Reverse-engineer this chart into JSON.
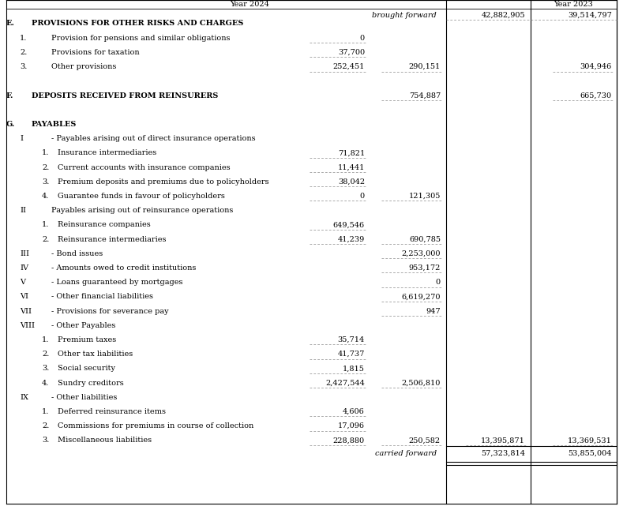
{
  "brought_forward_label": "brought forward",
  "brought_forward_2024": "42,882,905",
  "brought_forward_2023": "39,514,797",
  "carried_forward_label": "carried forward",
  "carried_forward_2024": "57,323,814",
  "carried_forward_2023": "53,855,004",
  "last_row_2024_total": "13,395,871",
  "bg_color": "#ffffff",
  "text_color": "#000000",
  "rows": [
    {
      "label": "E.",
      "label2": "PROVISIONS FOR OTHER RISKS AND CHARGES",
      "indent": 0,
      "bold": true,
      "c1": "",
      "c2": "",
      "c3": "",
      "c4": "",
      "ul1": false,
      "ul2": false,
      "ul3": false,
      "ul4": false
    },
    {
      "label": "1.",
      "label2": "Provision for pensions and similar obligations",
      "indent": 1,
      "bold": false,
      "c1": "0",
      "c2": "",
      "c3": "",
      "c4": "",
      "ul1": true,
      "ul2": false,
      "ul3": false,
      "ul4": false
    },
    {
      "label": "2.",
      "label2": "Provisions for taxation",
      "indent": 1,
      "bold": false,
      "c1": "37,700",
      "c2": "",
      "c3": "",
      "c4": "",
      "ul1": true,
      "ul2": false,
      "ul3": false,
      "ul4": false
    },
    {
      "label": "3.",
      "label2": "Other provisions",
      "indent": 1,
      "bold": false,
      "c1": "252,451",
      "c2": "290,151",
      "c3": "",
      "c4": "304,946",
      "ul1": true,
      "ul2": true,
      "ul3": false,
      "ul4": true
    },
    {
      "label": "",
      "label2": "",
      "indent": 0,
      "bold": false,
      "c1": "",
      "c2": "",
      "c3": "",
      "c4": "",
      "ul1": false,
      "ul2": false,
      "ul3": false,
      "ul4": false
    },
    {
      "label": "F.",
      "label2": "DEPOSITS RECEIVED FROM REINSURERS",
      "indent": 0,
      "bold": true,
      "c1": "",
      "c2": "754,887",
      "c3": "",
      "c4": "665,730",
      "ul1": false,
      "ul2": true,
      "ul3": false,
      "ul4": true
    },
    {
      "label": "",
      "label2": "",
      "indent": 0,
      "bold": false,
      "c1": "",
      "c2": "",
      "c3": "",
      "c4": "",
      "ul1": false,
      "ul2": false,
      "ul3": false,
      "ul4": false
    },
    {
      "label": "G.",
      "label2": "PAYABLES",
      "indent": 0,
      "bold": true,
      "c1": "",
      "c2": "",
      "c3": "",
      "c4": "",
      "ul1": false,
      "ul2": false,
      "ul3": false,
      "ul4": false
    },
    {
      "label": "I",
      "label2": "- Payables arising out of direct insurance operations",
      "indent": 1,
      "bold": false,
      "c1": "",
      "c2": "",
      "c3": "",
      "c4": "",
      "ul1": false,
      "ul2": false,
      "ul3": false,
      "ul4": false
    },
    {
      "label": "1.",
      "label2": "Insurance intermediaries",
      "indent": 2,
      "bold": false,
      "c1": "71,821",
      "c2": "",
      "c3": "",
      "c4": "",
      "ul1": true,
      "ul2": false,
      "ul3": false,
      "ul4": false
    },
    {
      "label": "2.",
      "label2": "Current accounts with insurance companies",
      "indent": 2,
      "bold": false,
      "c1": "11,441",
      "c2": "",
      "c3": "",
      "c4": "",
      "ul1": true,
      "ul2": false,
      "ul3": false,
      "ul4": false
    },
    {
      "label": "3.",
      "label2": "Premium deposits and premiums due to policyholders",
      "indent": 2,
      "bold": false,
      "c1": "38,042",
      "c2": "",
      "c3": "",
      "c4": "",
      "ul1": true,
      "ul2": false,
      "ul3": false,
      "ul4": false
    },
    {
      "label": "4.",
      "label2": "Guarantee funds in favour of policyholders",
      "indent": 2,
      "bold": false,
      "c1": "0",
      "c2": "121,305",
      "c3": "",
      "c4": "",
      "ul1": true,
      "ul2": true,
      "ul3": false,
      "ul4": false
    },
    {
      "label": "II",
      "label2": "Payables arising out of reinsurance operations",
      "indent": 1,
      "bold": false,
      "c1": "",
      "c2": "",
      "c3": "",
      "c4": "",
      "ul1": false,
      "ul2": false,
      "ul3": false,
      "ul4": false
    },
    {
      "label": "1.",
      "label2": "Reinsurance companies",
      "indent": 2,
      "bold": false,
      "c1": "649,546",
      "c2": "",
      "c3": "",
      "c4": "",
      "ul1": true,
      "ul2": false,
      "ul3": false,
      "ul4": false
    },
    {
      "label": "2.",
      "label2": "Reinsurance intermediaries",
      "indent": 2,
      "bold": false,
      "c1": "41,239",
      "c2": "690,785",
      "c3": "",
      "c4": "",
      "ul1": true,
      "ul2": true,
      "ul3": false,
      "ul4": false
    },
    {
      "label": "III",
      "label2": "- Bond issues",
      "indent": 1,
      "bold": false,
      "c1": "",
      "c2": "2,253,000",
      "c3": "",
      "c4": "",
      "ul1": false,
      "ul2": true,
      "ul3": false,
      "ul4": false
    },
    {
      "label": "IV",
      "label2": "- Amounts owed to credit institutions",
      "indent": 1,
      "bold": false,
      "c1": "",
      "c2": "953,172",
      "c3": "",
      "c4": "",
      "ul1": false,
      "ul2": true,
      "ul3": false,
      "ul4": false
    },
    {
      "label": "V",
      "label2": "- Loans guaranteed by mortgages",
      "indent": 1,
      "bold": false,
      "c1": "",
      "c2": "0",
      "c3": "",
      "c4": "",
      "ul1": false,
      "ul2": true,
      "ul3": false,
      "ul4": false
    },
    {
      "label": "VI",
      "label2": "- Other financial liabilities",
      "indent": 1,
      "bold": false,
      "c1": "",
      "c2": "6,619,270",
      "c3": "",
      "c4": "",
      "ul1": false,
      "ul2": true,
      "ul3": false,
      "ul4": false
    },
    {
      "label": "VII",
      "label2": "- Provisions for severance pay",
      "indent": 1,
      "bold": false,
      "c1": "",
      "c2": "947",
      "c3": "",
      "c4": "",
      "ul1": false,
      "ul2": true,
      "ul3": false,
      "ul4": false
    },
    {
      "label": "VIII",
      "label2": "- Other Payables",
      "indent": 1,
      "bold": false,
      "c1": "",
      "c2": "",
      "c3": "",
      "c4": "",
      "ul1": false,
      "ul2": false,
      "ul3": false,
      "ul4": false
    },
    {
      "label": "1.",
      "label2": "Premium taxes",
      "indent": 2,
      "bold": false,
      "c1": "35,714",
      "c2": "",
      "c3": "",
      "c4": "",
      "ul1": true,
      "ul2": false,
      "ul3": false,
      "ul4": false
    },
    {
      "label": "2.",
      "label2": "Other tax liabilities",
      "indent": 2,
      "bold": false,
      "c1": "41,737",
      "c2": "",
      "c3": "",
      "c4": "",
      "ul1": true,
      "ul2": false,
      "ul3": false,
      "ul4": false
    },
    {
      "label": "3.",
      "label2": "Social security",
      "indent": 2,
      "bold": false,
      "c1": "1,815",
      "c2": "",
      "c3": "",
      "c4": "",
      "ul1": true,
      "ul2": false,
      "ul3": false,
      "ul4": false
    },
    {
      "label": "4.",
      "label2": "Sundry creditors",
      "indent": 2,
      "bold": false,
      "c1": "2,427,544",
      "c2": "2,506,810",
      "c3": "",
      "c4": "",
      "ul1": true,
      "ul2": true,
      "ul3": false,
      "ul4": false
    },
    {
      "label": "IX",
      "label2": "- Other liabilities",
      "indent": 1,
      "bold": false,
      "c1": "",
      "c2": "",
      "c3": "",
      "c4": "",
      "ul1": false,
      "ul2": false,
      "ul3": false,
      "ul4": false
    },
    {
      "label": "1.",
      "label2": "Deferred reinsurance items",
      "indent": 2,
      "bold": false,
      "c1": "4,606",
      "c2": "",
      "c3": "",
      "c4": "",
      "ul1": true,
      "ul2": false,
      "ul3": false,
      "ul4": false
    },
    {
      "label": "2.",
      "label2": "Commissions for premiums in course of collection",
      "indent": 2,
      "bold": false,
      "c1": "17,096",
      "c2": "",
      "c3": "",
      "c4": "",
      "ul1": true,
      "ul2": false,
      "ul3": false,
      "ul4": false
    },
    {
      "label": "3.",
      "label2": "Miscellaneous liabilities",
      "indent": 2,
      "bold": false,
      "c1": "228,880",
      "c2": "250,582",
      "c3": "13,395,871",
      "c4": "13,369,531",
      "ul1": true,
      "ul2": true,
      "ul3": true,
      "ul4": true
    }
  ]
}
